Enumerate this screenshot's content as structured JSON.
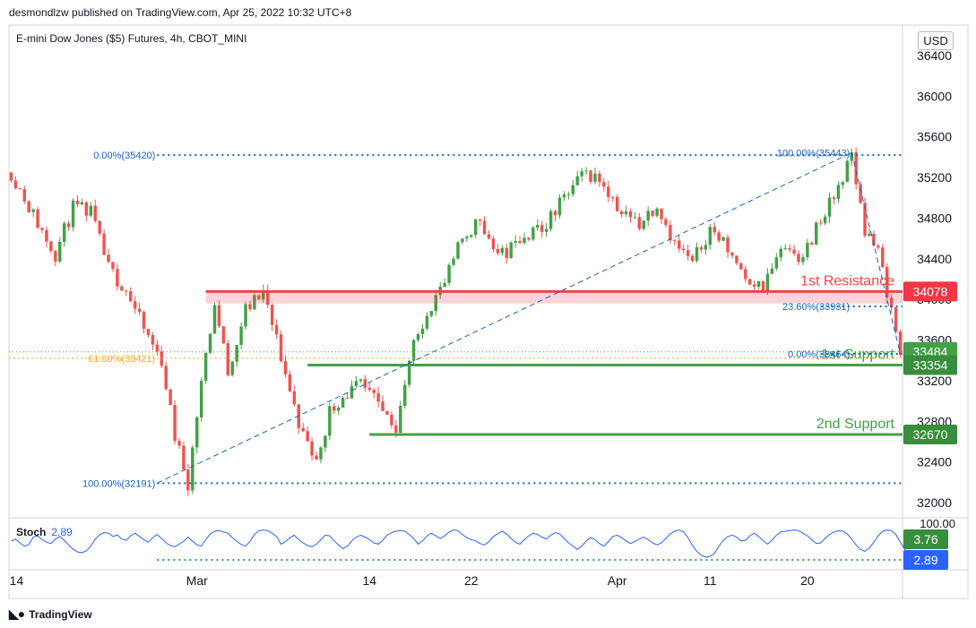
{
  "header": {
    "published_by": "desmondlzw published on TradingView.com, Apr 25, 2022 10:32 UTC+8",
    "instrument": "E-mini Dow Jones ($5) Futures, 4h, CBOT_MINI",
    "currency": "USD"
  },
  "footer": {
    "brand": "TradingView",
    "logo_icon": "tradingview-logo-icon"
  },
  "colors": {
    "up": "#26a69a",
    "down": "#ef5350",
    "candle_up": "#43a047",
    "candle_down": "#ef5350",
    "resistance": "#ef4444",
    "support": "#43a047",
    "fib": "#1565c0",
    "stoch": "#2962ff",
    "fib_gold": "#f9a825"
  },
  "chart_data": [
    {
      "type": "candlestick",
      "title": "E-mini Dow Jones ($5) Futures, 4h, CBOT_MINI",
      "ylim": [
        31850,
        36700
      ],
      "y_ticks": [
        32000,
        32400,
        32800,
        33200,
        33600,
        34000,
        34400,
        34800,
        35200,
        35600,
        36000,
        36400
      ],
      "x_tick_labels": [
        "14",
        "Mar",
        "14",
        "22",
        "Apr",
        "11",
        "20"
      ],
      "x_tick_index": [
        0,
        42,
        81,
        104,
        137,
        158,
        180
      ],
      "path": [
        [
          0,
          35250
        ],
        [
          6,
          34750
        ],
        [
          10,
          34450
        ],
        [
          14,
          34900
        ],
        [
          18,
          34850
        ],
        [
          22,
          34300
        ],
        [
          26,
          34100
        ],
        [
          30,
          33700
        ],
        [
          34,
          33400
        ],
        [
          37,
          32650
        ],
        [
          40,
          32200
        ],
        [
          43,
          33200
        ],
        [
          46,
          33950
        ],
        [
          49,
          33300
        ],
        [
          53,
          33900
        ],
        [
          57,
          34050
        ],
        [
          60,
          33600
        ],
        [
          63,
          33100
        ],
        [
          66,
          32650
        ],
        [
          69,
          32400
        ],
        [
          72,
          32900
        ],
        [
          75,
          33050
        ],
        [
          79,
          33150
        ],
        [
          83,
          32950
        ],
        [
          87,
          32750
        ],
        [
          90,
          33400
        ],
        [
          94,
          33900
        ],
        [
          98,
          34150
        ],
        [
          102,
          34600
        ],
        [
          106,
          34800
        ],
        [
          110,
          34400
        ],
        [
          114,
          34550
        ],
        [
          118,
          34650
        ],
        [
          122,
          34800
        ],
        [
          126,
          35050
        ],
        [
          130,
          35250
        ],
        [
          134,
          35150
        ],
        [
          138,
          34850
        ],
        [
          142,
          34750
        ],
        [
          146,
          34950
        ],
        [
          150,
          34550
        ],
        [
          154,
          34350
        ],
        [
          158,
          34700
        ],
        [
          162,
          34500
        ],
        [
          166,
          34250
        ],
        [
          170,
          34100
        ],
        [
          174,
          34500
        ],
        [
          178,
          34350
        ],
        [
          182,
          34700
        ],
        [
          186,
          35000
        ],
        [
          190,
          35420
        ],
        [
          193,
          34700
        ],
        [
          196,
          34450
        ],
        [
          199,
          33900
        ],
        [
          201,
          33464
        ]
      ],
      "horizontal_levels": [
        {
          "label": "1st Resistance",
          "value": 34078,
          "color": "#ef4444"
        },
        {
          "label": "1st Support",
          "value": 33354,
          "color": "#43a047"
        },
        {
          "label": "2nd Support",
          "value": 32670,
          "color": "#43a047"
        }
      ],
      "resistance_zone": [
        33960,
        34078
      ],
      "price_labels": [
        {
          "text": "34078",
          "value": 34078,
          "bg": "#f23645"
        },
        {
          "text": "33484",
          "value": 33484,
          "bg": "#43a047"
        },
        {
          "text": "33354",
          "value": 33354,
          "bg": "#388e3c"
        },
        {
          "text": "32670",
          "value": 32670,
          "bg": "#388e3c"
        }
      ],
      "fib_left": [
        {
          "text": "0.00%(35420)",
          "value": 35420
        },
        {
          "text": "61.80%(33421)",
          "value": 33421
        },
        {
          "text": "100.00%(32191)",
          "value": 32191
        }
      ],
      "fib_right": [
        {
          "text": "100.00%(35443)",
          "value": 35443
        },
        {
          "text": "23.60%(33931)",
          "value": 33931
        },
        {
          "text": "0.00%(33464)",
          "value": 33464
        }
      ],
      "current_price": 33484
    },
    {
      "type": "line",
      "title": "Stoch",
      "value_text": "2.89",
      "ylim": [
        0,
        100
      ],
      "y_tick": "100.00",
      "k_value": "3.76",
      "d_value": "2.89",
      "values": [
        55,
        62,
        50,
        40,
        45,
        68,
        72,
        60,
        52,
        48,
        62,
        70,
        58,
        44,
        30,
        22,
        20,
        25,
        40,
        62,
        75,
        82,
        80,
        70,
        75,
        62,
        58,
        72,
        80,
        70,
        60,
        52,
        66,
        76,
        64,
        50,
        42,
        38,
        46,
        55,
        68,
        55,
        44,
        40,
        60,
        78,
        86,
        88,
        84,
        80,
        66,
        55,
        45,
        40,
        55,
        76,
        88,
        90,
        88,
        80,
        70,
        46,
        54,
        66,
        74,
        60,
        50,
        42,
        38,
        46,
        60,
        74,
        72,
        56,
        44,
        32,
        40,
        56,
        68,
        74,
        68,
        60,
        50,
        46,
        58,
        74,
        82,
        86,
        88,
        86,
        76,
        64,
        46,
        56,
        72,
        80,
        72,
        64,
        72,
        84,
        90,
        88,
        76,
        66,
        60,
        56,
        48,
        44,
        54,
        70,
        78,
        86,
        78,
        64,
        52,
        46,
        60,
        72,
        80,
        76,
        68,
        62,
        74,
        82,
        78,
        64,
        50,
        40,
        30,
        40,
        56,
        66,
        60,
        48,
        40,
        54,
        70,
        74,
        66,
        56,
        48,
        54,
        62,
        68,
        60,
        50,
        44,
        50,
        64,
        78,
        86,
        90,
        84,
        66,
        42,
        24,
        12,
        6,
        8,
        18,
        40,
        58,
        70,
        74,
        68,
        56,
        58,
        72,
        80,
        70,
        56,
        46,
        58,
        74,
        84,
        86,
        88,
        90,
        88,
        80,
        72,
        60,
        48,
        50,
        64,
        76,
        84,
        88,
        86,
        78,
        62,
        44,
        30,
        24,
        34,
        52,
        72,
        86,
        90,
        88,
        76,
        52,
        30,
        16,
        6,
        3.76
      ]
    }
  ]
}
